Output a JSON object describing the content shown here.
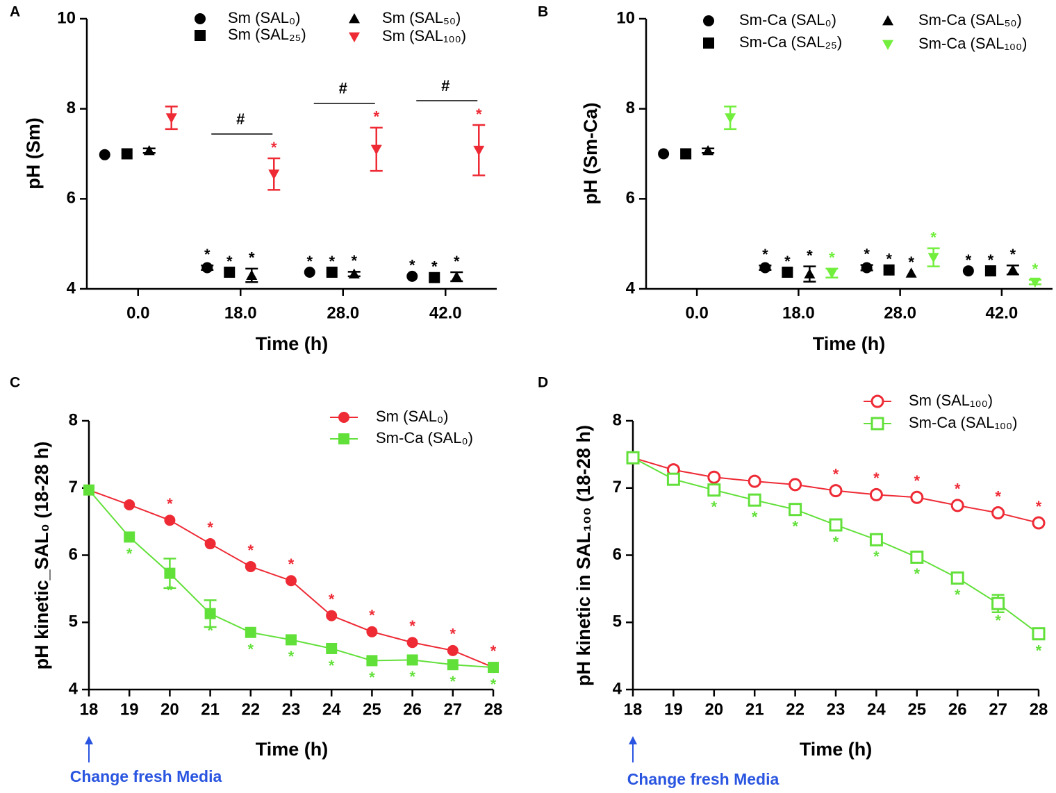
{
  "chart_data": [
    {
      "type": "dotplot",
      "panel_label": "A",
      "x_label": "Time (h)",
      "y_label": "pH (Sm)",
      "categories": [
        "0.0",
        "18.0",
        "28.0",
        "42.0"
      ],
      "ylim": [
        4,
        10
      ],
      "yticks": [
        4,
        6,
        8,
        10
      ],
      "legend": "upper right",
      "series": [
        {
          "name": "Sm (SAL₀)",
          "color": "#000000",
          "marker": "circle",
          "filled": true,
          "values": [
            6.98,
            4.47,
            4.37,
            4.28
          ],
          "errors": [
            null,
            0.05,
            null,
            null
          ],
          "significance": [
            null,
            "*",
            "*",
            "*"
          ]
        },
        {
          "name": "Sm (SAL₂₅)",
          "color": "#000000",
          "marker": "square",
          "filled": true,
          "values": [
            7.0,
            4.37,
            4.37,
            4.25
          ],
          "errors": [
            null,
            null,
            null,
            null
          ],
          "significance": [
            null,
            "*",
            "*",
            "*"
          ]
        },
        {
          "name": "Sm (SAL₅₀)",
          "color": "#000000",
          "marker": "triangle",
          "filled": true,
          "values": [
            7.07,
            4.3,
            4.33,
            4.27
          ],
          "errors": [
            0.05,
            0.15,
            0.05,
            0.1
          ],
          "significance": [
            null,
            "*",
            "*",
            "*"
          ]
        },
        {
          "name": "Sm (SAL₁₀₀)",
          "color": "#ee2a35",
          "marker": "triangle-down",
          "filled": true,
          "values": [
            7.8,
            6.55,
            7.1,
            7.08
          ],
          "errors": [
            0.25,
            0.35,
            0.48,
            0.56
          ],
          "significance": [
            null,
            "*",
            "*",
            "*"
          ]
        }
      ],
      "group_labels": [
        null,
        "#",
        "#",
        "#"
      ]
    },
    {
      "type": "dotplot",
      "panel_label": "B",
      "x_label": "Time (h)",
      "y_label": "pH (Sm-Ca)",
      "categories": [
        "0.0",
        "18.0",
        "28.0",
        "42.0"
      ],
      "ylim": [
        4,
        10
      ],
      "yticks": [
        4,
        6,
        8,
        10
      ],
      "legend": "upper right",
      "series": [
        {
          "name": "Sm-Ca (SAL₀)",
          "color": "#000000",
          "marker": "circle",
          "filled": true,
          "values": [
            7.0,
            4.47,
            4.47,
            4.4
          ],
          "errors": [
            null,
            0.05,
            0.06,
            null
          ],
          "significance": [
            null,
            "*",
            "*",
            "*"
          ]
        },
        {
          "name": "Sm-Ca (SAL₂₅)",
          "color": "#000000",
          "marker": "square",
          "filled": true,
          "values": [
            7.0,
            4.37,
            4.42,
            4.4
          ],
          "errors": [
            null,
            null,
            null,
            null
          ],
          "significance": [
            null,
            "*",
            "*",
            "*"
          ]
        },
        {
          "name": "Sm-Ca (SAL₅₀)",
          "color": "#000000",
          "marker": "triangle",
          "filled": true,
          "values": [
            7.07,
            4.33,
            4.35,
            4.42
          ],
          "errors": [
            0.05,
            0.17,
            null,
            0.1
          ],
          "significance": [
            null,
            "*",
            "*",
            "*"
          ]
        },
        {
          "name": "Sm-Ca (SAL₁₀₀)",
          "color": "#72ee3c",
          "marker": "triangle-down",
          "filled": true,
          "values": [
            7.8,
            4.35,
            4.7,
            4.15
          ],
          "errors": [
            0.25,
            0.1,
            0.2,
            0.05
          ],
          "significance": [
            null,
            "*",
            "*",
            "*"
          ]
        }
      ]
    },
    {
      "type": "line",
      "panel_label": "C",
      "x_label": "Time (h)",
      "y_label": "pH kinetic_SAL₀ (18-28 h)",
      "x": [
        18,
        19,
        20,
        21,
        22,
        23,
        24,
        25,
        26,
        27,
        28
      ],
      "xlim": [
        18,
        28
      ],
      "xticks": [
        18,
        19,
        20,
        21,
        22,
        23,
        24,
        25,
        26,
        27,
        28
      ],
      "ylim": [
        4,
        8
      ],
      "yticks": [
        4,
        5,
        6,
        7,
        8
      ],
      "legend": "upper right",
      "series": [
        {
          "name": "Sm (SAL₀)",
          "color": "#ee2a35",
          "marker": "circle",
          "filled": true,
          "values": [
            6.97,
            6.75,
            6.52,
            6.17,
            5.83,
            5.62,
            5.1,
            4.86,
            4.7,
            4.58,
            4.33
          ],
          "significance": [
            null,
            null,
            "*",
            "*",
            "*",
            "*",
            "*",
            "*",
            "*",
            "*",
            "*"
          ],
          "significance_position": "above"
        },
        {
          "name": "Sm-Ca (SAL₀)",
          "color": "#62e03a",
          "marker": "square",
          "filled": true,
          "values": [
            6.97,
            6.27,
            5.73,
            5.13,
            4.85,
            4.74,
            4.61,
            4.43,
            4.44,
            4.37,
            4.33
          ],
          "errors": [
            null,
            null,
            0.22,
            0.2,
            null,
            null,
            null,
            null,
            null,
            null,
            null
          ],
          "significance": [
            null,
            "*",
            "*",
            "*",
            "*",
            "*",
            "*",
            "*",
            "*",
            "*",
            "*"
          ],
          "significance_position": "below"
        }
      ],
      "annotation": {
        "text": "Change fresh Media",
        "x": 18
      }
    },
    {
      "type": "line",
      "panel_label": "D",
      "x_label": "Time (h)",
      "y_label": "pH kinetic in SAL₁₀₀ (18-28 h)",
      "x": [
        18,
        19,
        20,
        21,
        22,
        23,
        24,
        25,
        26,
        27,
        28
      ],
      "xlim": [
        18,
        28
      ],
      "xticks": [
        18,
        19,
        20,
        21,
        22,
        23,
        24,
        25,
        26,
        27,
        28
      ],
      "ylim": [
        4,
        8
      ],
      "yticks": [
        4,
        5,
        6,
        7,
        8
      ],
      "legend": "upper right",
      "series": [
        {
          "name": "Sm (SAL₁₀₀)",
          "color": "#ee2a35",
          "marker": "circle",
          "filled": false,
          "values": [
            7.45,
            7.27,
            7.16,
            7.1,
            7.05,
            6.96,
            6.9,
            6.86,
            6.74,
            6.63,
            6.48
          ],
          "significance": [
            null,
            null,
            null,
            null,
            null,
            "*",
            "*",
            "*",
            "*",
            "*",
            "*"
          ],
          "significance_position": "above"
        },
        {
          "name": "Sm-Ca (SAL₁₀₀)",
          "color": "#62e03a",
          "marker": "square",
          "filled": false,
          "values": [
            7.45,
            7.13,
            6.97,
            6.82,
            6.68,
            6.45,
            6.23,
            5.97,
            5.66,
            5.28,
            4.83
          ],
          "errors": [
            null,
            null,
            null,
            null,
            null,
            null,
            null,
            null,
            null,
            0.13,
            null
          ],
          "significance": [
            null,
            null,
            "*",
            "*",
            "*",
            "*",
            "*",
            "*",
            "*",
            "*",
            "*"
          ],
          "significance_position": "below"
        }
      ],
      "annotation": {
        "text": "Change fresh Media",
        "x": 18
      }
    }
  ]
}
